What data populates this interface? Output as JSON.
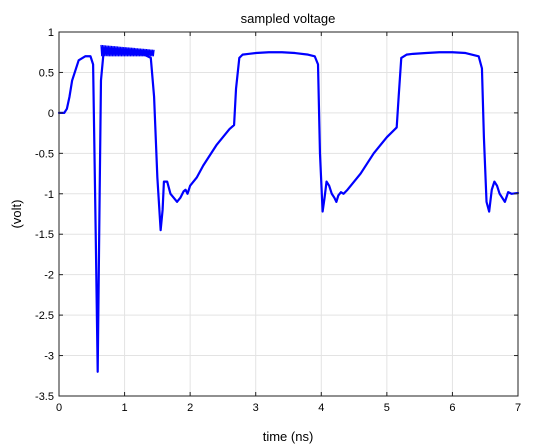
{
  "chart_data": {
    "type": "line",
    "title": "sampled voltage",
    "xlabel": "time (ns)",
    "ylabel": "(volt)",
    "xlim": [
      0,
      7
    ],
    "ylim": [
      -3.5,
      1
    ],
    "grid": true,
    "line_color": "#0000ff",
    "x_ticks": [
      "0",
      "1",
      "2",
      "3",
      "4",
      "5",
      "6",
      "7"
    ],
    "y_ticks": [
      "1",
      "0.5",
      "0",
      "-0.5",
      "-1",
      "-1.5",
      "-2",
      "-2.5",
      "-3",
      "-3.5"
    ],
    "series": [
      {
        "x": [
          0.0,
          0.08,
          0.12,
          0.16,
          0.2,
          0.3,
          0.4,
          0.48,
          0.52,
          0.56,
          0.59,
          0.62,
          0.64,
          0.68,
          0.72,
          0.8,
          1.0,
          1.2,
          1.3,
          1.4,
          1.45,
          1.5,
          1.55,
          1.58,
          1.6,
          1.65,
          1.7,
          1.75,
          1.8,
          1.85,
          1.9,
          1.93,
          1.96,
          2.0,
          2.1,
          2.2,
          2.4,
          2.6,
          2.67,
          2.7,
          2.75,
          2.8,
          2.9,
          3.0,
          3.2,
          3.4,
          3.6,
          3.8,
          3.9,
          3.95,
          3.98,
          4.02,
          4.05,
          4.08,
          4.12,
          4.16,
          4.2,
          4.23,
          4.26,
          4.3,
          4.34,
          4.4,
          4.6,
          4.8,
          5.0,
          5.15,
          5.18,
          5.22,
          5.3,
          5.4,
          5.6,
          5.8,
          6.0,
          6.2,
          6.4,
          6.45,
          6.48,
          6.52,
          6.56,
          6.6,
          6.64,
          6.68,
          6.72,
          6.76,
          6.8,
          6.85,
          6.9,
          7.0
        ],
        "y": [
          0.0,
          0.0,
          0.05,
          0.2,
          0.4,
          0.65,
          0.7,
          0.7,
          0.6,
          -1.5,
          -3.2,
          -1.0,
          0.4,
          0.75,
          0.76,
          0.76,
          0.74,
          0.73,
          0.72,
          0.68,
          0.2,
          -0.8,
          -1.45,
          -1.2,
          -0.85,
          -0.85,
          -1.0,
          -1.05,
          -1.1,
          -1.05,
          -0.97,
          -0.95,
          -1.0,
          -0.9,
          -0.8,
          -0.65,
          -0.4,
          -0.2,
          -0.15,
          0.3,
          0.68,
          0.72,
          0.73,
          0.74,
          0.75,
          0.75,
          0.74,
          0.72,
          0.7,
          0.6,
          -0.5,
          -1.22,
          -1.05,
          -0.85,
          -0.9,
          -1.0,
          -1.05,
          -1.1,
          -1.02,
          -0.98,
          -1.0,
          -0.95,
          -0.75,
          -0.5,
          -0.3,
          -0.18,
          0.2,
          0.68,
          0.72,
          0.73,
          0.74,
          0.75,
          0.75,
          0.74,
          0.7,
          0.55,
          -0.3,
          -1.1,
          -1.22,
          -0.95,
          -0.85,
          -0.9,
          -1.0,
          -1.05,
          -1.1,
          -0.98,
          -1.0,
          -0.99
        ]
      }
    ],
    "ringing": {
      "x_start": 0.64,
      "x_end": 1.45,
      "y_low": 0.7,
      "y_high_start": 0.84,
      "y_high_end": 0.78
    }
  }
}
